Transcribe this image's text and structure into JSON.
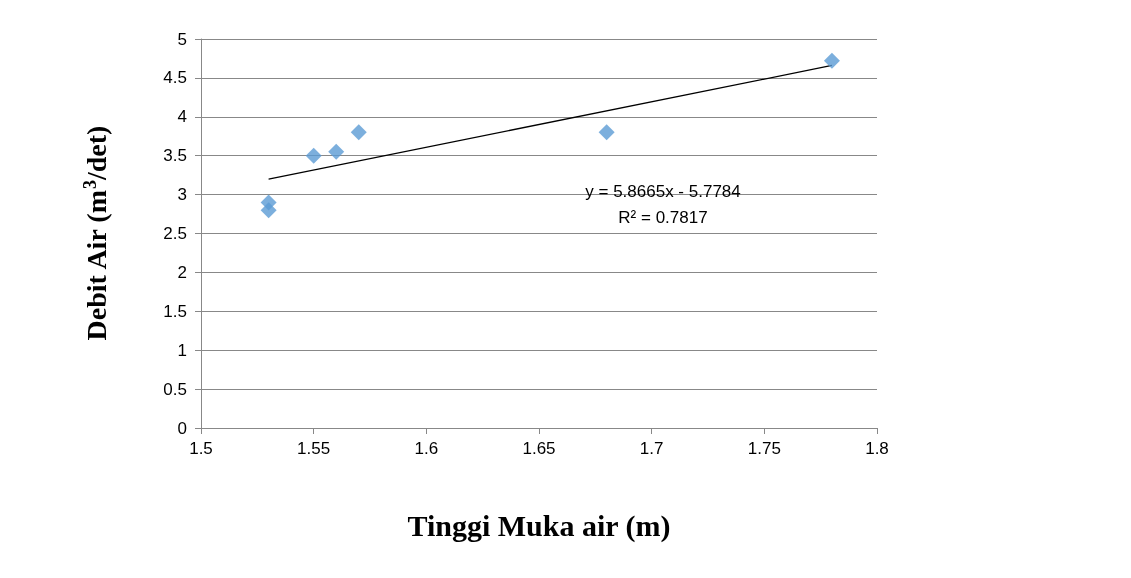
{
  "chart_data": {
    "type": "scatter",
    "xlabel": "Tinggi Muka air (m)",
    "ylabel": "Debit Air (m$^{3}$/det)",
    "series": [
      {
        "color": "#5b9bd5",
        "marker": "diamond",
        "x": [
          1.53,
          1.53,
          1.55,
          1.56,
          1.57,
          1.68,
          1.78
        ],
        "values": [
          2.9,
          2.8,
          3.5,
          3.55,
          3.8,
          3.8,
          4.72
        ]
      },
      {
        "type": "line",
        "color": "#000000",
        "marker": "none",
        "x": [
          1.53,
          1.78
        ],
        "values": [
          3.2,
          4.66
        ]
      }
    ],
    "annotations": [
      "y = 5.8665x - 5.7784",
      "R² = 0.7817"
    ],
    "xlim": [
      1.5,
      1.8
    ],
    "xticks": [
      1.5,
      1.55,
      1.6,
      1.65,
      1.7,
      1.75,
      1.8
    ],
    "ylim": [
      0,
      5
    ],
    "yticks": [
      0,
      0.5,
      1,
      1.5,
      2,
      2.5,
      3,
      3.5,
      4,
      4.5,
      5
    ],
    "grid": "y"
  }
}
